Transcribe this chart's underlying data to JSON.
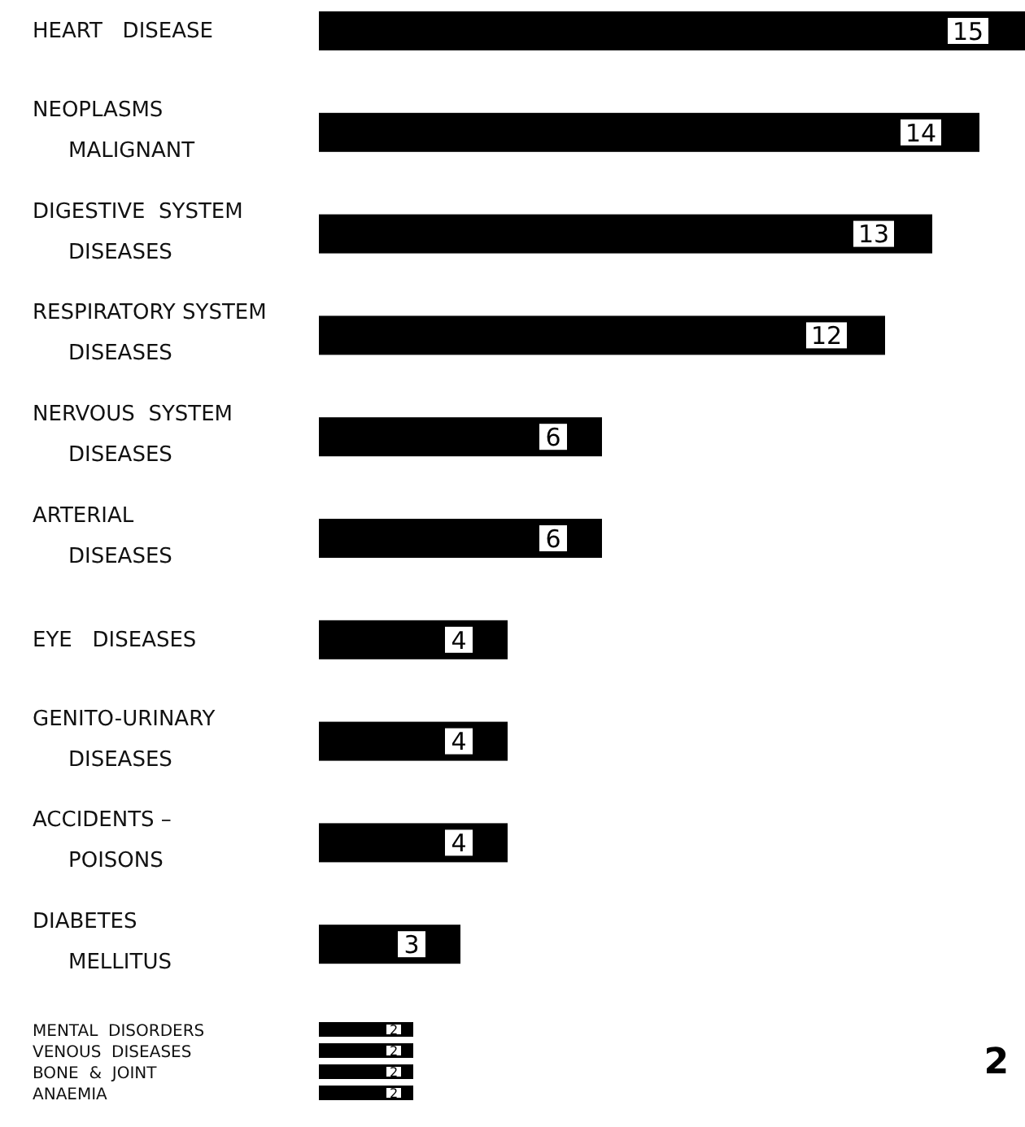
{
  "chart_data": {
    "type": "bar",
    "orientation": "horizontal",
    "categories": [
      "HEART   DISEASE",
      "NEOPLASMS\nMALIGNANT",
      "DIGESTIVE  SYSTEM\nDISEASES",
      "RESPIRATORY SYSTEM\nDISEASES",
      "NERVOUS  SYSTEM\nDISEASES",
      "ARTERIAL\nDISEASES",
      "EYE   DISEASES",
      "GENITO-URINARY\nDISEASES",
      "ACCIDENTS –\nPOISONS",
      "DIABETES\nMELLITUS",
      "MENTAL  DISORDERS",
      "VENOUS  DISEASES",
      "BONE  &  JOINT",
      "ANAEMIA"
    ],
    "values": [
      15,
      14,
      13,
      12,
      6,
      6,
      4,
      4,
      4,
      3,
      2,
      2,
      2,
      2
    ],
    "color": "#000000",
    "data_labels": true,
    "annotations": [
      "2"
    ]
  }
}
